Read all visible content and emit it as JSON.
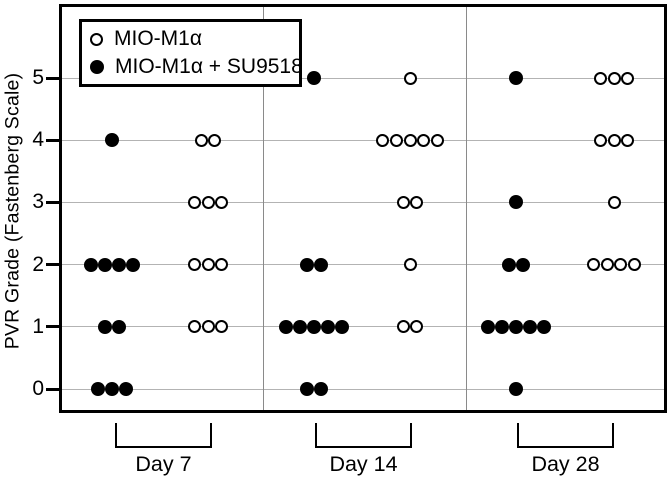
{
  "chart_data": {
    "type": "scatter",
    "title": "",
    "xlabel": "",
    "ylabel": "PVR Grade (Fastenberg Scale)",
    "y_ticks": [
      5,
      4,
      3,
      2,
      1,
      0
    ],
    "ylim": [
      0,
      5
    ],
    "grid": true,
    "legend_position": "top-left",
    "groups": [
      "Day 7",
      "Day 14",
      "Day 28"
    ],
    "series": [
      {
        "name": "MIO-M1α",
        "marker": "open",
        "points_by_group": [
          {
            "4": 2,
            "3": 3,
            "2": 3,
            "1": 3
          },
          {
            "5": 1,
            "4": 5,
            "3": 2,
            "2": 1,
            "1": 2
          },
          {
            "5": 3,
            "4": 3,
            "3": 1,
            "2": 4
          }
        ]
      },
      {
        "name": "MIO-M1α + SU9518",
        "marker": "filled",
        "points_by_group": [
          {
            "4": 1,
            "2": 4,
            "1": 2,
            "0": 3
          },
          {
            "5": 1,
            "2": 2,
            "1": 5,
            "0": 2
          },
          {
            "5": 1,
            "3": 1,
            "2": 2,
            "1": 5,
            "0": 1
          }
        ]
      }
    ],
    "colors": {
      "marker": "#000000",
      "grid": "#b3b3b3",
      "frame": "#000000",
      "divider": "#8a8a8a",
      "background": "#ffffff"
    }
  }
}
